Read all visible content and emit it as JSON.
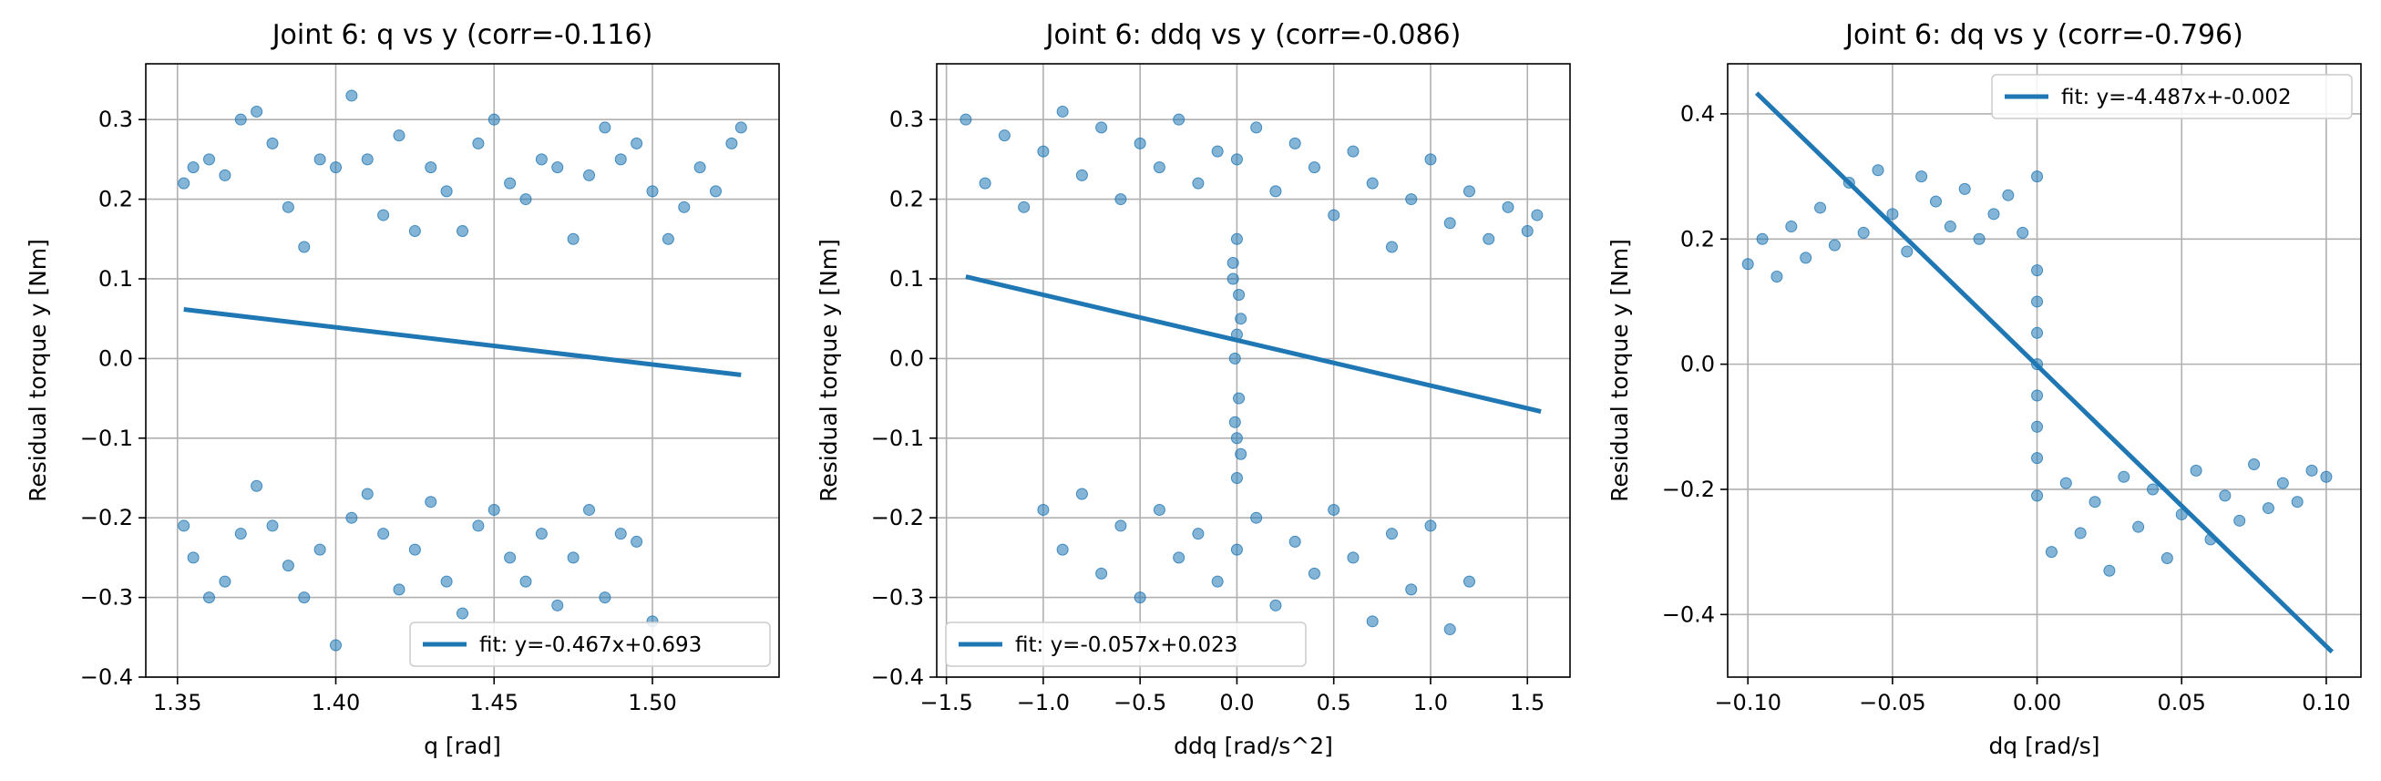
{
  "chart_data": [
    {
      "type": "scatter",
      "title": "Joint 6: q vs y (corr=-0.116)",
      "xlabel": "q [rad]",
      "ylabel": "Residual torque y [Nm]",
      "xlim": [
        1.34,
        1.54
      ],
      "ylim": [
        -0.4,
        0.37
      ],
      "xticks": [
        1.35,
        1.4,
        1.45,
        1.5
      ],
      "xtick_labels": [
        "1.35",
        "1.40",
        "1.45",
        "1.50"
      ],
      "yticks": [
        -0.4,
        -0.3,
        -0.2,
        -0.1,
        0.0,
        0.1,
        0.2,
        0.3
      ],
      "ytick_labels": [
        "−0.4",
        "−0.3",
        "−0.2",
        "−0.1",
        "0.0",
        "0.1",
        "0.2",
        "0.3"
      ],
      "grid": true,
      "legend_position": "lower-right",
      "fit_label": "fit: y=-0.467x+0.693",
      "fit": {
        "slope": -0.467,
        "intercept": 0.693,
        "x_range": [
          1.352,
          1.528
        ]
      },
      "scatter_color": "#1f77b4",
      "series": [
        {
          "x": [
            1.352,
            1.355,
            1.36,
            1.365,
            1.37,
            1.375,
            1.38,
            1.385,
            1.39,
            1.395,
            1.4,
            1.405,
            1.41,
            1.415,
            1.42,
            1.425,
            1.43,
            1.435,
            1.44,
            1.445,
            1.45,
            1.455,
            1.46,
            1.465,
            1.47,
            1.475,
            1.48,
            1.485,
            1.49,
            1.495,
            1.5,
            1.505,
            1.51,
            1.515,
            1.52,
            1.525,
            1.528
          ],
          "y": [
            0.22,
            0.24,
            0.25,
            0.23,
            0.3,
            0.31,
            0.27,
            0.19,
            0.14,
            0.25,
            0.24,
            0.33,
            0.25,
            0.18,
            0.28,
            0.16,
            0.24,
            0.21,
            0.16,
            0.27,
            0.3,
            0.22,
            0.2,
            0.25,
            0.24,
            0.15,
            0.23,
            0.29,
            0.25,
            0.27,
            0.21,
            0.15,
            0.19,
            0.24,
            0.21,
            0.27,
            0.29
          ]
        },
        {
          "x": [
            1.352,
            1.355,
            1.36,
            1.365,
            1.37,
            1.375,
            1.38,
            1.385,
            1.39,
            1.395,
            1.4,
            1.405,
            1.41,
            1.415,
            1.42,
            1.425,
            1.43,
            1.435,
            1.44,
            1.445,
            1.45,
            1.455,
            1.46,
            1.465,
            1.47,
            1.475,
            1.48,
            1.485,
            1.49,
            1.495,
            1.5
          ],
          "y": [
            -0.21,
            -0.25,
            -0.3,
            -0.28,
            -0.22,
            -0.16,
            -0.21,
            -0.26,
            -0.3,
            -0.24,
            -0.36,
            -0.2,
            -0.17,
            -0.22,
            -0.29,
            -0.24,
            -0.18,
            -0.28,
            -0.32,
            -0.21,
            -0.19,
            -0.25,
            -0.28,
            -0.22,
            -0.31,
            -0.25,
            -0.19,
            -0.3,
            -0.22,
            -0.23,
            -0.33
          ]
        }
      ]
    },
    {
      "type": "scatter",
      "title": "Joint 6: ddq vs y (corr=-0.086)",
      "xlabel": "ddq [rad/s^2]",
      "ylabel": "Residual torque y [Nm]",
      "xlim": [
        -1.55,
        1.72
      ],
      "ylim": [
        -0.4,
        0.37
      ],
      "xticks": [
        -1.5,
        -1.0,
        -0.5,
        0.0,
        0.5,
        1.0,
        1.5
      ],
      "xtick_labels": [
        "−1.5",
        "−1.0",
        "−0.5",
        "0.0",
        "0.5",
        "1.0",
        "1.5"
      ],
      "yticks": [
        -0.4,
        -0.3,
        -0.2,
        -0.1,
        0.0,
        0.1,
        0.2,
        0.3
      ],
      "ytick_labels": [
        "−0.4",
        "−0.3",
        "−0.2",
        "−0.1",
        "0.0",
        "0.1",
        "0.2",
        "0.3"
      ],
      "grid": true,
      "legend_position": "lower-left",
      "fit_label": "fit: y=-0.057x+0.023",
      "fit": {
        "slope": -0.057,
        "intercept": 0.023,
        "x_range": [
          -1.4,
          1.57
        ]
      },
      "scatter_color": "#1f77b4",
      "series": [
        {
          "x": [
            -1.4,
            -1.3,
            -1.2,
            -1.1,
            -1.0,
            -0.9,
            -0.8,
            -0.7,
            -0.6,
            -0.5,
            -0.4,
            -0.3,
            -0.2,
            -0.1,
            0.0,
            0.1,
            0.2,
            0.3,
            0.4,
            0.5,
            0.6,
            0.7,
            0.8,
            0.9,
            1.0,
            1.1,
            1.2,
            1.3,
            1.4,
            1.5,
            1.55
          ],
          "y": [
            0.3,
            0.22,
            0.28,
            0.19,
            0.26,
            0.31,
            0.23,
            0.29,
            0.2,
            0.27,
            0.24,
            0.3,
            0.22,
            0.26,
            0.25,
            0.29,
            0.21,
            0.27,
            0.24,
            0.18,
            0.26,
            0.22,
            0.14,
            0.2,
            0.25,
            0.17,
            0.21,
            0.15,
            0.19,
            0.16,
            0.18
          ]
        },
        {
          "x": [
            -1.0,
            -0.9,
            -0.8,
            -0.7,
            -0.6,
            -0.5,
            -0.4,
            -0.3,
            -0.2,
            -0.1,
            0.0,
            0.1,
            0.2,
            0.3,
            0.4,
            0.5,
            0.6,
            0.7,
            0.8,
            0.9,
            1.0,
            1.1,
            1.2
          ],
          "y": [
            -0.19,
            -0.24,
            -0.17,
            -0.27,
            -0.21,
            -0.3,
            -0.19,
            -0.25,
            -0.22,
            -0.28,
            -0.24,
            -0.2,
            -0.31,
            -0.23,
            -0.27,
            -0.19,
            -0.25,
            -0.33,
            -0.22,
            -0.29,
            -0.21,
            -0.34,
            -0.28
          ]
        },
        {
          "x": [
            0.0,
            0.01,
            -0.01,
            0.02,
            -0.02,
            0.0,
            0.01,
            -0.01,
            0.0,
            0.02,
            -0.02,
            0.0
          ],
          "y": [
            -0.1,
            -0.05,
            0.0,
            0.05,
            0.1,
            -0.15,
            0.08,
            -0.08,
            0.03,
            -0.12,
            0.12,
            0.15
          ]
        }
      ]
    },
    {
      "type": "scatter",
      "title": "Joint 6: dq vs y (corr=-0.796)",
      "xlabel": "dq [rad/s]",
      "ylabel": "Residual torque y [Nm]",
      "xlim": [
        -0.107,
        0.112
      ],
      "ylim": [
        -0.5,
        0.48
      ],
      "xticks": [
        -0.1,
        -0.05,
        0.0,
        0.05,
        0.1
      ],
      "xtick_labels": [
        "−0.10",
        "−0.05",
        "0.00",
        "0.05",
        "0.10"
      ],
      "yticks": [
        -0.4,
        -0.2,
        0.0,
        0.2,
        0.4
      ],
      "ytick_labels": [
        "−0.4",
        "−0.2",
        "0.0",
        "0.2",
        "0.4"
      ],
      "grid": true,
      "legend_position": "upper-right",
      "fit_label": "fit: y=-4.487x+-0.002",
      "fit": {
        "slope": -4.487,
        "intercept": -0.002,
        "x_range": [
          -0.097,
          0.102
        ]
      },
      "scatter_color": "#1f77b4",
      "series": [
        {
          "x": [
            -0.1,
            -0.095,
            -0.09,
            -0.085,
            -0.08,
            -0.075,
            -0.07,
            -0.065,
            -0.06,
            -0.055,
            -0.05,
            -0.045,
            -0.04,
            -0.035,
            -0.03,
            -0.025,
            -0.02,
            -0.015,
            -0.01,
            -0.005,
            0.0
          ],
          "y": [
            0.16,
            0.2,
            0.14,
            0.22,
            0.17,
            0.25,
            0.19,
            0.29,
            0.21,
            0.31,
            0.24,
            0.18,
            0.3,
            0.26,
            0.22,
            0.28,
            0.2,
            0.24,
            0.27,
            0.21,
            0.3
          ]
        },
        {
          "x": [
            0.0,
            0.005,
            0.01,
            0.015,
            0.02,
            0.025,
            0.03,
            0.035,
            0.04,
            0.045,
            0.05,
            0.055,
            0.06,
            0.065,
            0.07,
            0.075,
            0.08,
            0.085,
            0.09,
            0.095,
            0.1
          ],
          "y": [
            -0.21,
            -0.3,
            -0.19,
            -0.27,
            -0.22,
            -0.33,
            -0.18,
            -0.26,
            -0.2,
            -0.31,
            -0.24,
            -0.17,
            -0.28,
            -0.21,
            -0.25,
            -0.16,
            -0.23,
            -0.19,
            -0.22,
            -0.17,
            -0.18
          ]
        },
        {
          "x": [
            0.0,
            0.0,
            0.0,
            0.0,
            0.0,
            0.0,
            0.0
          ],
          "y": [
            -0.15,
            -0.1,
            -0.05,
            0.0,
            0.05,
            0.1,
            0.15
          ]
        }
      ]
    }
  ]
}
